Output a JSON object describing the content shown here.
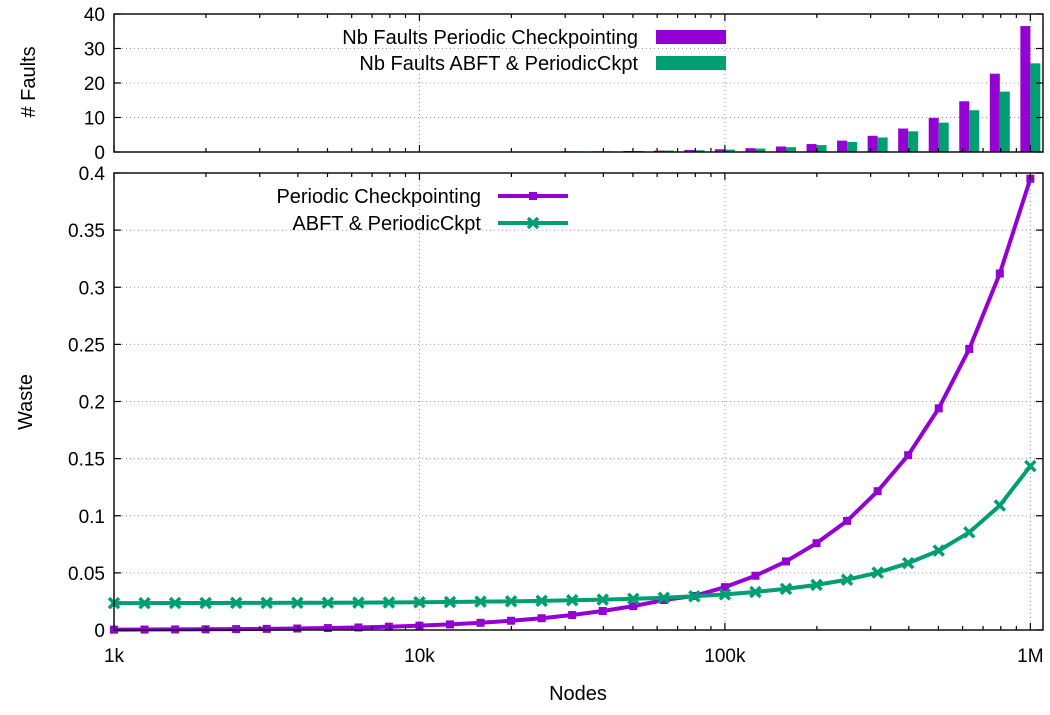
{
  "chart_data": [
    {
      "type": "bar",
      "ylabel": "# Faults",
      "xscale": "log",
      "xlim": [
        1000,
        1100000
      ],
      "ylim": [
        0,
        40
      ],
      "yticks": [
        0,
        10,
        20,
        30,
        40
      ],
      "grid": true,
      "legend_position": "top-center",
      "x": [
        1000,
        1259,
        1585,
        1995,
        2512,
        3162,
        3981,
        5012,
        6310,
        7943,
        10000,
        12589,
        15849,
        19953,
        25119,
        31623,
        39811,
        50119,
        63096,
        79433,
        100000,
        125893,
        158489,
        199526,
        251189,
        316228,
        398107,
        501187,
        630957,
        794328,
        1000000
      ],
      "series": [
        {
          "name": "Nb Faults Periodic Checkpointing",
          "color": "#9400d3",
          "values": [
            0,
            0,
            0,
            0,
            0,
            0,
            0,
            0,
            0,
            0,
            0.1,
            0.1,
            0.1,
            0.1,
            0.1,
            0.2,
            0.2,
            0.3,
            0.4,
            0.6,
            0.8,
            1.1,
            1.6,
            2.3,
            3.3,
            4.7,
            6.8,
            9.9,
            14.7,
            22.7,
            36.5
          ]
        },
        {
          "name": "Nb Faults ABFT & PeriodicCkpt",
          "color": "#009e73",
          "values": [
            0,
            0,
            0,
            0,
            0,
            0,
            0,
            0,
            0,
            0,
            0.1,
            0.1,
            0.1,
            0.1,
            0.1,
            0.2,
            0.2,
            0.3,
            0.4,
            0.5,
            0.7,
            1.0,
            1.4,
            2.0,
            2.9,
            4.2,
            6.0,
            8.5,
            12.1,
            17.5,
            25.7
          ]
        }
      ]
    },
    {
      "type": "line",
      "xlabel": "Nodes",
      "ylabel": "Waste",
      "xscale": "log",
      "xlim": [
        1000,
        1100000
      ],
      "ylim": [
        0,
        0.4
      ],
      "xtick_values": [
        1000,
        10000,
        100000,
        1000000
      ],
      "xtick_labels": [
        "1k",
        "10k",
        "100k",
        "1M"
      ],
      "yticks": [
        0,
        0.05,
        0.1,
        0.15,
        0.2,
        0.25,
        0.3,
        0.35,
        0.4
      ],
      "grid": true,
      "legend_position": "top-left",
      "x": [
        1000,
        1259,
        1585,
        1995,
        2512,
        3162,
        3981,
        5012,
        6310,
        7943,
        10000,
        12589,
        15849,
        19953,
        25119,
        31623,
        39811,
        50119,
        63096,
        79433,
        100000,
        125893,
        158489,
        199526,
        251189,
        316228,
        398107,
        501187,
        630957,
        794328,
        1000000
      ],
      "series": [
        {
          "name": "Periodic Checkpointing",
          "color": "#9400d3",
          "marker": "square",
          "values": [
            0.0003,
            0.0004,
            0.0005,
            0.0006,
            0.0008,
            0.001,
            0.0013,
            0.0017,
            0.0022,
            0.0029,
            0.0038,
            0.0049,
            0.0063,
            0.0081,
            0.0103,
            0.0131,
            0.0166,
            0.0209,
            0.0262,
            0.0298,
            0.0375,
            0.0475,
            0.06,
            0.076,
            0.0955,
            0.1215,
            0.153,
            0.194,
            0.246,
            0.312,
            0.395
          ]
        },
        {
          "name": "ABFT & PeriodicCkpt",
          "color": "#009e73",
          "marker": "cross",
          "values": [
            0.0235,
            0.0235,
            0.0236,
            0.0236,
            0.0237,
            0.0237,
            0.0238,
            0.0239,
            0.024,
            0.0241,
            0.0243,
            0.0245,
            0.0248,
            0.0251,
            0.0255,
            0.026,
            0.0266,
            0.0273,
            0.0282,
            0.0295,
            0.0312,
            0.0333,
            0.036,
            0.0395,
            0.044,
            0.0502,
            0.0585,
            0.0695,
            0.0855,
            0.109,
            0.1435
          ]
        }
      ]
    }
  ]
}
